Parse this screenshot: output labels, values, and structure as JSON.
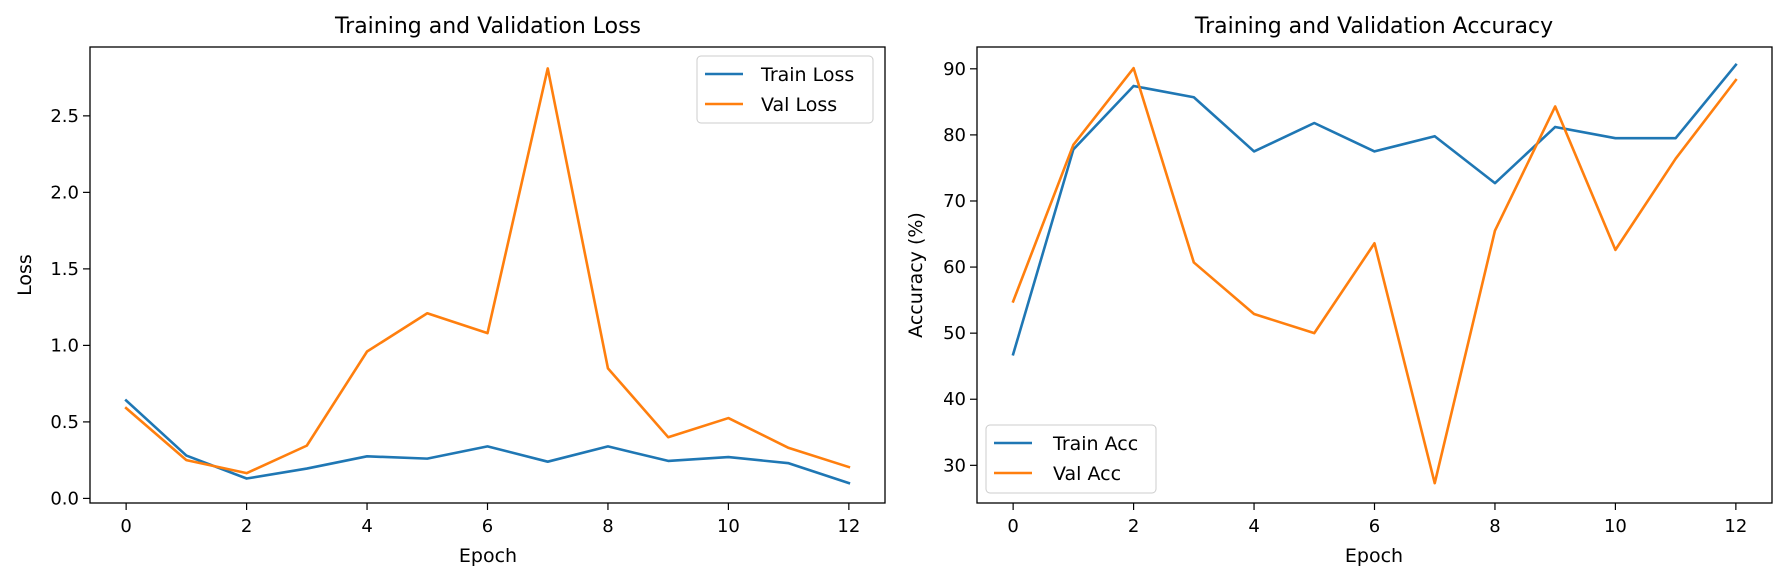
{
  "chart_data": [
    {
      "type": "line",
      "title": "Training and Validation Loss",
      "xlabel": "Epoch",
      "ylabel": "Loss",
      "xlim": [
        -0.6,
        12.6
      ],
      "ylim": [
        -0.03,
        2.95
      ],
      "xticks": [
        0,
        2,
        4,
        6,
        8,
        10,
        12
      ],
      "yticks": [
        0.0,
        0.5,
        1.0,
        1.5,
        2.0,
        2.5
      ],
      "ytick_labels": [
        "0.0",
        "0.5",
        "1.0",
        "1.5",
        "2.0",
        "2.5"
      ],
      "grid": false,
      "legend_position": "top-right",
      "x": [
        0,
        1,
        2,
        3,
        4,
        5,
        6,
        7,
        8,
        9,
        10,
        11,
        12
      ],
      "series": [
        {
          "name": "Train Loss",
          "color": "#1f77b4",
          "values": [
            0.64,
            0.28,
            0.13,
            0.195,
            0.275,
            0.26,
            0.34,
            0.24,
            0.34,
            0.245,
            0.27,
            0.23,
            0.1
          ]
        },
        {
          "name": "Val Loss",
          "color": "#ff7f0e",
          "values": [
            0.59,
            0.25,
            0.165,
            0.345,
            0.96,
            1.21,
            1.08,
            2.81,
            0.85,
            0.4,
            0.525,
            0.33,
            0.205
          ]
        }
      ]
    },
    {
      "type": "line",
      "title": "Training and Validation Accuracy",
      "xlabel": "Epoch",
      "ylabel": "Accuracy (%)",
      "xlim": [
        -0.6,
        12.6
      ],
      "ylim": [
        24.3,
        93.3
      ],
      "xticks": [
        0,
        2,
        4,
        6,
        8,
        10,
        12
      ],
      "yticks": [
        30,
        40,
        50,
        60,
        70,
        80,
        90
      ],
      "ytick_labels": [
        "30",
        "40",
        "50",
        "60",
        "70",
        "80",
        "90"
      ],
      "grid": false,
      "legend_position": "bottom-left",
      "x": [
        0,
        1,
        2,
        3,
        4,
        5,
        6,
        7,
        8,
        9,
        10,
        11,
        12
      ],
      "series": [
        {
          "name": "Train Acc",
          "color": "#1f77b4",
          "values": [
            46.8,
            77.8,
            87.4,
            85.7,
            77.5,
            81.8,
            77.5,
            79.8,
            72.7,
            81.2,
            79.5,
            79.5,
            90.6
          ]
        },
        {
          "name": "Val Acc",
          "color": "#ff7f0e",
          "values": [
            54.8,
            78.5,
            90.1,
            60.7,
            52.9,
            50.0,
            63.6,
            27.3,
            65.5,
            84.3,
            62.6,
            76.4,
            88.3
          ]
        }
      ]
    }
  ]
}
